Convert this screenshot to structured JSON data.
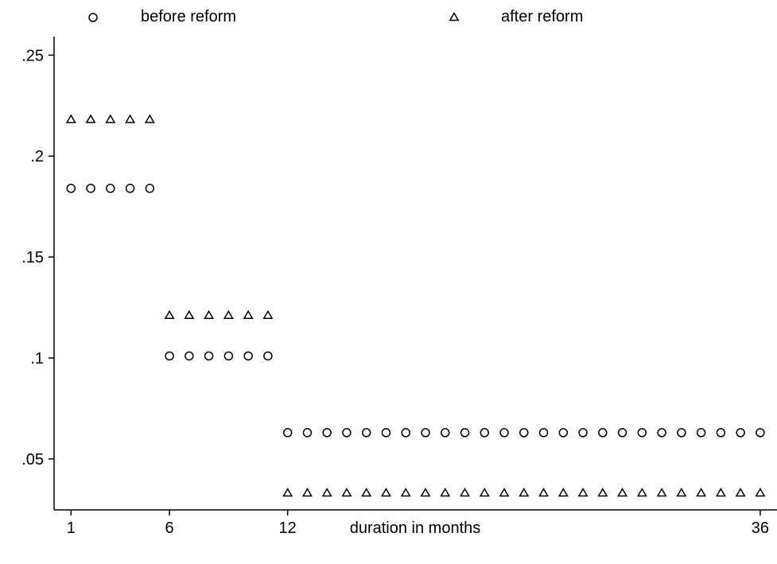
{
  "chart_data": {
    "type": "scatter",
    "title": "",
    "xlabel": "duration in months",
    "ylabel": "",
    "xlim": [
      1,
      36
    ],
    "ylim": [
      0.025,
      0.25
    ],
    "x_ticks": [
      1,
      6,
      12,
      36
    ],
    "x_tick_labels": [
      "1",
      "6",
      "12",
      "36"
    ],
    "y_ticks": [
      0.05,
      0.1,
      0.15,
      0.2,
      0.25
    ],
    "y_tick_labels": [
      ".05",
      ".1",
      ".15",
      ".2",
      ".25"
    ],
    "grid": false,
    "legend_position": "top",
    "series": [
      {
        "name": "before reform",
        "marker": "circle",
        "x": [
          1,
          2,
          3,
          4,
          5,
          6,
          7,
          8,
          9,
          10,
          11,
          12,
          13,
          14,
          15,
          16,
          17,
          18,
          19,
          20,
          21,
          22,
          23,
          24,
          25,
          26,
          27,
          28,
          29,
          30,
          31,
          32,
          33,
          34,
          35,
          36
        ],
        "y": [
          0.184,
          0.184,
          0.184,
          0.184,
          0.184,
          0.101,
          0.101,
          0.101,
          0.101,
          0.101,
          0.101,
          0.063,
          0.063,
          0.063,
          0.063,
          0.063,
          0.063,
          0.063,
          0.063,
          0.063,
          0.063,
          0.063,
          0.063,
          0.063,
          0.063,
          0.063,
          0.063,
          0.063,
          0.063,
          0.063,
          0.063,
          0.063,
          0.063,
          0.063,
          0.063,
          0.063
        ]
      },
      {
        "name": "after reform",
        "marker": "triangle",
        "x": [
          1,
          2,
          3,
          4,
          5,
          6,
          7,
          8,
          9,
          10,
          11,
          12,
          13,
          14,
          15,
          16,
          17,
          18,
          19,
          20,
          21,
          22,
          23,
          24,
          25,
          26,
          27,
          28,
          29,
          30,
          31,
          32,
          33,
          34,
          35,
          36
        ],
        "y": [
          0.218,
          0.218,
          0.218,
          0.218,
          0.218,
          0.121,
          0.121,
          0.121,
          0.121,
          0.121,
          0.121,
          0.033,
          0.033,
          0.033,
          0.033,
          0.033,
          0.033,
          0.033,
          0.033,
          0.033,
          0.033,
          0.033,
          0.033,
          0.033,
          0.033,
          0.033,
          0.033,
          0.033,
          0.033,
          0.033,
          0.033,
          0.033,
          0.033,
          0.033,
          0.033,
          0.033
        ]
      }
    ]
  }
}
